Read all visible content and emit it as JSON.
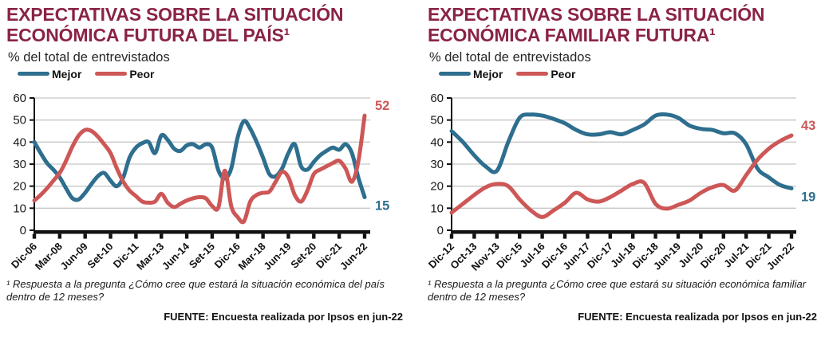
{
  "colors": {
    "title": "#8a2346",
    "mejor": "#2e6e8e",
    "peor": "#cd5757",
    "axis": "#111111",
    "grid": "#c6c6c6"
  },
  "chart_data": [
    {
      "type": "line",
      "title": "EXPECTATIVAS SOBRE LA SITUACIÓN ECONÓMICA FUTURA DEL PAÍS¹",
      "subtitle": "% del total de entrevistados",
      "legend_position": "top",
      "grid": true,
      "ylim": [
        0,
        60
      ],
      "yticks": [
        0,
        10,
        20,
        30,
        40,
        50,
        60
      ],
      "categories": [
        "Dic-06",
        "Mar-08",
        "Jun-09",
        "Set-10",
        "Dic-11",
        "Mar-13",
        "Jun-14",
        "Set-15",
        "Dic-16",
        "Mar-18",
        "Jun-19",
        "Set-20",
        "Dic-21",
        "Jun-22"
      ],
      "points_per_interval": 4,
      "series": [
        {
          "name": "Mejor",
          "color": "#2e6e8e",
          "end_label": "15",
          "values": [
            40,
            35,
            30.5,
            27.5,
            24,
            19,
            14.5,
            14,
            17,
            21,
            24.5,
            26,
            22.5,
            20,
            24,
            33,
            37.5,
            39.5,
            40,
            35,
            43,
            41,
            37,
            36,
            38.5,
            39,
            37.5,
            39,
            37.5,
            27,
            23.5,
            28,
            42,
            49.5,
            46,
            40,
            33,
            25.5,
            24.5,
            28,
            35,
            39,
            29,
            27.5,
            31,
            34,
            36,
            37.5,
            36.5,
            39,
            35,
            24,
            15
          ]
        },
        {
          "name": "Peor",
          "color": "#cd5757",
          "end_label": "52",
          "values": [
            13.5,
            16,
            19,
            22.5,
            26,
            31.5,
            38,
            43,
            45.5,
            45,
            42.5,
            39,
            35,
            28,
            22,
            18,
            15.5,
            13,
            12.5,
            13,
            16.5,
            12.5,
            10.5,
            12,
            13.5,
            14.5,
            15,
            14.5,
            11,
            10.5,
            27,
            11,
            6,
            4,
            13,
            16,
            17,
            17.5,
            22,
            26.5,
            24,
            16,
            13,
            18,
            25.5,
            27.5,
            29,
            30.5,
            31.5,
            28,
            22,
            31,
            52
          ]
        }
      ],
      "footnote": "¹ Respuesta a la pregunta ¿Cómo cree que estará la situación económica del país dentro de 12 meses?",
      "fuente": "FUENTE: Encuesta realizada por Ipsos en jun-22"
    },
    {
      "type": "line",
      "title": "EXPECTATIVAS SOBRE LA SITUACIÓN ECONÓMICA FAMILIAR FUTURA¹",
      "subtitle": "% del total de entrevistados",
      "legend_position": "top",
      "grid": true,
      "ylim": [
        0,
        60
      ],
      "yticks": [
        0,
        10,
        20,
        30,
        40,
        50,
        60
      ],
      "categories": [
        "Dic-12",
        "Oct-13",
        "Nov-13",
        "Dic-15",
        "Jul-16",
        "Dic-16",
        "Jun-17",
        "Dic-17",
        "Jul-18",
        "Dic-18",
        "Jun-19",
        "Jul-20",
        "Dic-20",
        "Jul-21",
        "Dic-21",
        "Jun-22"
      ],
      "points_per_interval": 2,
      "series": [
        {
          "name": "Mejor",
          "color": "#2e6e8e",
          "end_label": "19",
          "values": [
            45,
            40,
            34,
            29,
            27,
            40,
            51,
            52.5,
            52,
            50.5,
            48.5,
            45.5,
            43.5,
            43.5,
            44.5,
            43.5,
            45.5,
            48,
            52,
            52.5,
            51,
            47.5,
            46,
            45.5,
            44,
            44,
            39,
            28,
            24,
            20.5,
            19
          ]
        },
        {
          "name": "Peor",
          "color": "#cd5757",
          "end_label": "43",
          "values": [
            8,
            12,
            16,
            19.5,
            21,
            20,
            14,
            9,
            6,
            9,
            12.5,
            17,
            14,
            13,
            15,
            18,
            21,
            21.5,
            12,
            9.8,
            11.5,
            13.5,
            17,
            19.5,
            20.5,
            18,
            25,
            32,
            37,
            40.5,
            43
          ]
        }
      ],
      "footnote": "¹ Respuesta a la pregunta ¿Cómo cree que estará su situación económica familiar dentro de 12 meses?",
      "fuente": "FUENTE: Encuesta realizada por Ipsos en jun-22"
    }
  ]
}
